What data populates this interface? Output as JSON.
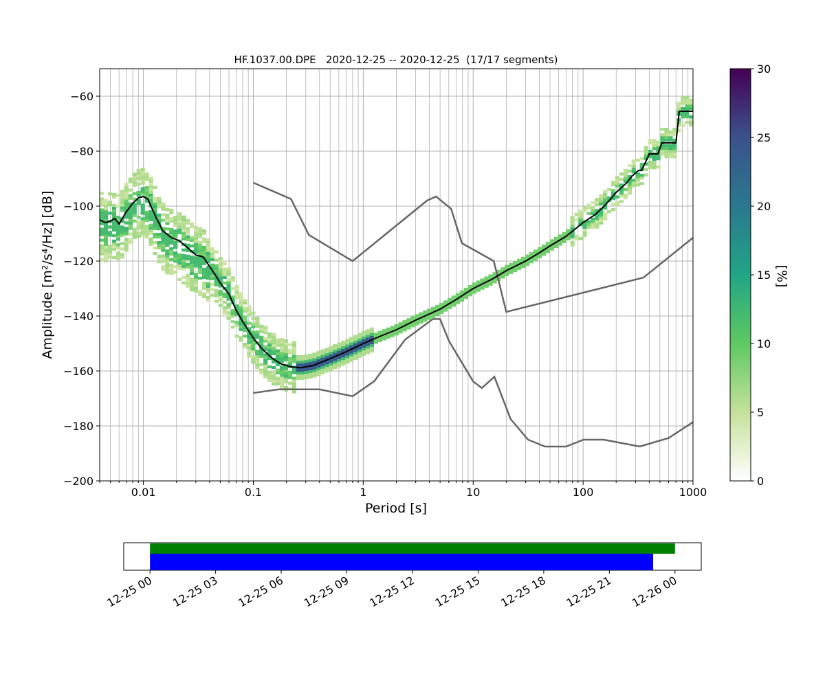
{
  "chart_data": [
    {
      "type": "heatmap",
      "title": "HF.1037.00.DPE   2020-12-25 -- 2020-12-25  (17/17 segments)",
      "xlabel": "Period [s]",
      "ylabel": "Amplitude [m²/s⁴/Hz] [dB]",
      "x_scale": "log",
      "xlim": [
        0.004,
        1000
      ],
      "ylim": [
        -200,
        -50
      ],
      "x_tick_labels": [
        "0.01",
        "0.1",
        "1",
        "10",
        "100",
        "1000"
      ],
      "x_tick_values": [
        0.01,
        0.1,
        1,
        10,
        100,
        1000
      ],
      "y_tick_labels": [
        "−200",
        "−180",
        "−160",
        "−140",
        "−120",
        "−100",
        "−80",
        "−60"
      ],
      "y_tick_values": [
        -200,
        -180,
        -160,
        -140,
        -120,
        -100,
        -80,
        -60
      ],
      "grid": true,
      "colorbar": {
        "label": "[%]",
        "range": [
          0,
          30
        ],
        "tick_labels": [
          "0",
          "5",
          "10",
          "15",
          "20",
          "25",
          "30"
        ],
        "tick_values": [
          0,
          5,
          10,
          15,
          20,
          25,
          30
        ],
        "colormap": [
          "#ffffff",
          "#c5e19a",
          "#5ec962",
          "#21a685",
          "#2a788e",
          "#3b528b",
          "#440154"
        ]
      },
      "mean_curve": {
        "color": "#000000",
        "points": [
          [
            0.004,
            -105
          ],
          [
            0.0045,
            -106
          ],
          [
            0.005,
            -105.5
          ],
          [
            0.0055,
            -104.5
          ],
          [
            0.006,
            -106.5
          ],
          [
            0.007,
            -102
          ],
          [
            0.008,
            -99
          ],
          [
            0.009,
            -97
          ],
          [
            0.01,
            -96.5
          ],
          [
            0.011,
            -97.5
          ],
          [
            0.012,
            -101
          ],
          [
            0.013,
            -104
          ],
          [
            0.015,
            -109
          ],
          [
            0.018,
            -111.5
          ],
          [
            0.021,
            -112.5
          ],
          [
            0.025,
            -115
          ],
          [
            0.03,
            -117.8
          ],
          [
            0.035,
            -118.5
          ],
          [
            0.04,
            -122
          ],
          [
            0.045,
            -125
          ],
          [
            0.05,
            -128
          ],
          [
            0.06,
            -132
          ],
          [
            0.07,
            -138
          ],
          [
            0.08,
            -142
          ],
          [
            0.1,
            -148
          ],
          [
            0.12,
            -152
          ],
          [
            0.15,
            -155.5
          ],
          [
            0.18,
            -157.5
          ],
          [
            0.22,
            -158.5
          ],
          [
            0.27,
            -158.8
          ],
          [
            0.35,
            -158
          ],
          [
            0.5,
            -155.5
          ],
          [
            0.7,
            -153
          ],
          [
            1,
            -150
          ],
          [
            1.5,
            -147
          ],
          [
            2,
            -145
          ],
          [
            3,
            -141.5
          ],
          [
            5,
            -137.5
          ],
          [
            7,
            -134
          ],
          [
            10,
            -130
          ],
          [
            15,
            -126.5
          ],
          [
            20,
            -123.5
          ],
          [
            30,
            -120
          ],
          [
            40,
            -117
          ],
          [
            50,
            -114.5
          ],
          [
            70,
            -111
          ],
          [
            100,
            -106
          ],
          [
            130,
            -103
          ],
          [
            160,
            -99.5
          ],
          [
            200,
            -95
          ],
          [
            250,
            -91.5
          ],
          [
            280,
            -89
          ],
          [
            320,
            -87
          ],
          [
            340,
            -87
          ],
          [
            360,
            -85
          ],
          [
            400,
            -81
          ],
          [
            480,
            -81
          ],
          [
            520,
            -77
          ],
          [
            620,
            -77
          ],
          [
            700,
            -77
          ],
          [
            750,
            -65.5
          ],
          [
            1000,
            -65.5
          ]
        ]
      },
      "noise_models": [
        {
          "name": "high_noise_model",
          "color": "#666666",
          "points": [
            [
              0.1,
              -91.5
            ],
            [
              0.22,
              -97.4
            ],
            [
              0.32,
              -110.5
            ],
            [
              0.8,
              -120
            ],
            [
              3.8,
              -98
            ],
            [
              4.6,
              -96.5
            ],
            [
              6.3,
              -101
            ],
            [
              7.9,
              -113.5
            ],
            [
              15.4,
              -120
            ],
            [
              20,
              -138.5
            ],
            [
              354.8,
              -126
            ],
            [
              1000,
              -111.5
            ]
          ]
        },
        {
          "name": "low_noise_model",
          "color": "#666666",
          "points": [
            [
              0.1,
              -168
            ],
            [
              0.17,
              -166.7
            ],
            [
              0.4,
              -166.7
            ],
            [
              0.8,
              -169.2
            ],
            [
              1.26,
              -163.7
            ],
            [
              2.4,
              -148.6
            ],
            [
              4.3,
              -141.1
            ],
            [
              5,
              -141.1
            ],
            [
              6,
              -149
            ],
            [
              10,
              -163.8
            ],
            [
              12,
              -166.2
            ],
            [
              15.6,
              -162.1
            ],
            [
              21.9,
              -177.5
            ],
            [
              31.6,
              -185
            ],
            [
              45,
              -187.5
            ],
            [
              70,
              -187.5
            ],
            [
              101,
              -185
            ],
            [
              154,
              -185
            ],
            [
              328,
              -187.5
            ],
            [
              600,
              -184.4
            ],
            [
              1000,
              -178.6
            ]
          ]
        }
      ]
    },
    {
      "type": "bar",
      "title": "",
      "x_tick_labels": [
        "12-25 00",
        "12-25 03",
        "12-25 06",
        "12-25 09",
        "12-25 12",
        "12-25 15",
        "12-25 18",
        "12-25 21",
        "12-26 00"
      ],
      "x_tick_hours": [
        0,
        3,
        6,
        9,
        12,
        15,
        18,
        21,
        24
      ],
      "xlim_hours": [
        -1.2,
        25.2
      ],
      "series": [
        {
          "color": "#008000",
          "start_hour": 0,
          "end_hour": 24
        },
        {
          "color": "#0000ff",
          "start_hour": 0,
          "end_hour": 23
        }
      ]
    }
  ]
}
